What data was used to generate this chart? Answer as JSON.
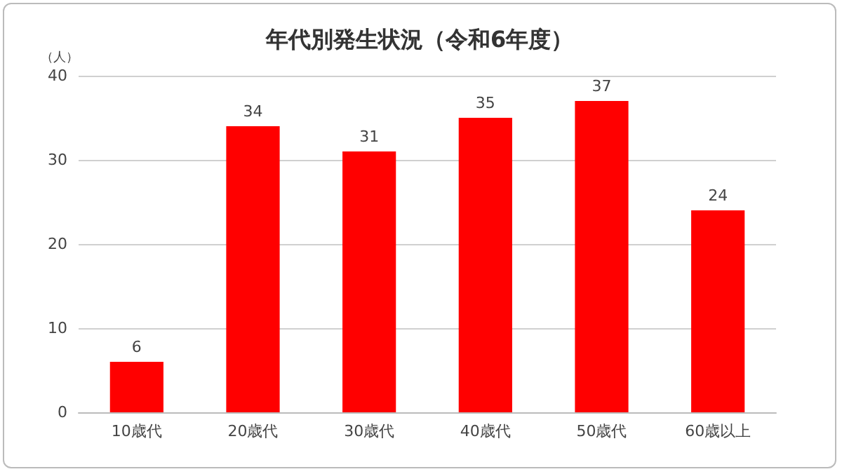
{
  "chart_data": {
    "type": "bar",
    "title": "年代別発生状況（令和6年度）",
    "ylabel": "（人）",
    "categories": [
      "10歳代",
      "20歳代",
      "30歳代",
      "40歳代",
      "50歳代",
      "60歳以上"
    ],
    "values": [
      6,
      34,
      31,
      35,
      37,
      24
    ],
    "color": "#ff0000",
    "ylim": [
      0,
      40
    ],
    "yticks": [
      0,
      10,
      20,
      30,
      40
    ],
    "grid": "y",
    "data_labels": true
  }
}
